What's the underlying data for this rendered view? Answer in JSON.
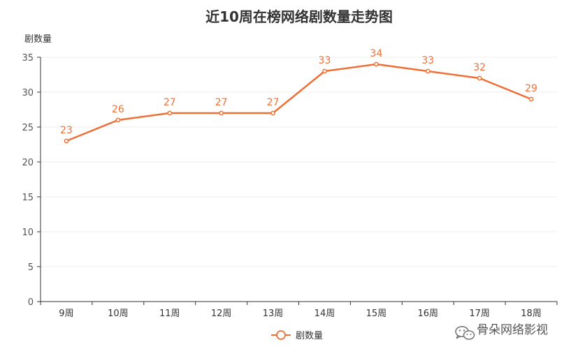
{
  "chart_data": {
    "type": "line",
    "title": "近10周在榜网络剧数量走势图",
    "ylabel": "剧数量",
    "xlabel": "",
    "categories": [
      "9周",
      "10周",
      "11周",
      "12周",
      "13周",
      "14周",
      "15周",
      "16周",
      "17周",
      "18周"
    ],
    "series": [
      {
        "name": "剧数量",
        "values": [
          23,
          26,
          27,
          27,
          27,
          33,
          34,
          33,
          32,
          29
        ],
        "color": "#ee7036"
      }
    ],
    "ylim": [
      0,
      35
    ],
    "yticks": [
      0,
      5,
      10,
      15,
      20,
      25,
      30,
      35
    ],
    "grid": true,
    "data_labels": true,
    "legend_position": "bottom-center"
  },
  "watermark": {
    "text": "骨朵网络影视",
    "icon": "wechat-icon"
  }
}
